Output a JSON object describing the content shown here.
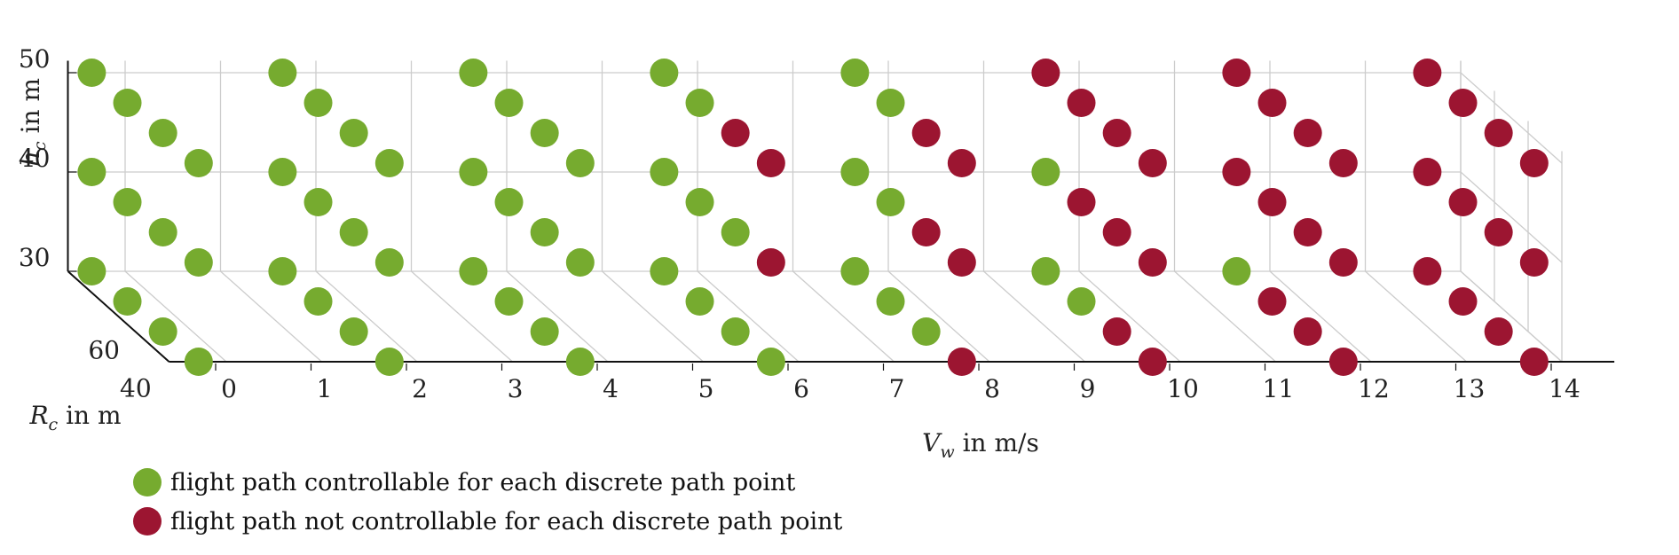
{
  "chart_data": {
    "type": "scatter",
    "x_axis": {
      "label": "V",
      "label_sub": "w",
      "label_unit": " in m/s",
      "ticks": [
        "0",
        "1",
        "2",
        "3",
        "4",
        "5",
        "6",
        "7",
        "8",
        "9",
        "10",
        "11",
        "12",
        "13",
        "14"
      ]
    },
    "y_axis": {
      "label": "R",
      "label_sub": "c",
      "label_unit": " in m",
      "ticks": [
        "40",
        "60"
      ]
    },
    "z_axis": {
      "label": "h",
      "label_sub": "c",
      "label_unit": " in m",
      "ticks": [
        "30",
        "40",
        "50"
      ]
    },
    "colors": {
      "controllable": "#76ab2f",
      "not_controllable": "#9c1531",
      "grid": "#cccccc",
      "axis": "#111111"
    },
    "legend": [
      {
        "status": "controllable",
        "label": "flight path controllable for each discrete path point"
      },
      {
        "status": "not_controllable",
        "label": "flight path not controllable for each discrete path point"
      }
    ],
    "series": [
      {
        "name": "V_w = 0",
        "status": [
          [
            "c",
            "c",
            "c",
            "c"
          ],
          [
            "c",
            "c",
            "c",
            "c"
          ],
          [
            "c",
            "c",
            "c",
            "c"
          ]
        ]
      },
      {
        "name": "V_w = 2",
        "status": [
          [
            "c",
            "c",
            "c",
            "c"
          ],
          [
            "c",
            "c",
            "c",
            "c"
          ],
          [
            "c",
            "c",
            "c",
            "c"
          ]
        ]
      },
      {
        "name": "V_w = 4",
        "status": [
          [
            "c",
            "c",
            "c",
            "c"
          ],
          [
            "c",
            "c",
            "c",
            "c"
          ],
          [
            "c",
            "c",
            "c",
            "c"
          ]
        ]
      },
      {
        "name": "V_w = 6",
        "status": [
          [
            "c",
            "c",
            "n",
            "n"
          ],
          [
            "c",
            "c",
            "c",
            "n"
          ],
          [
            "c",
            "c",
            "c",
            "c"
          ]
        ]
      },
      {
        "name": "V_w = 8",
        "status": [
          [
            "c",
            "c",
            "n",
            "n"
          ],
          [
            "c",
            "c",
            "n",
            "n"
          ],
          [
            "c",
            "c",
            "c",
            "n"
          ]
        ]
      },
      {
        "name": "V_w = 10",
        "status": [
          [
            "n",
            "n",
            "n",
            "n"
          ],
          [
            "c",
            "n",
            "n",
            "n"
          ],
          [
            "c",
            "c",
            "n",
            "n"
          ]
        ]
      },
      {
        "name": "V_w = 12",
        "status": [
          [
            "n",
            "n",
            "n",
            "n"
          ],
          [
            "n",
            "n",
            "n",
            "n"
          ],
          [
            "c",
            "n",
            "n",
            "n"
          ]
        ]
      },
      {
        "name": "V_w = 14",
        "status": [
          [
            "n",
            "n",
            "n",
            "n"
          ],
          [
            "n",
            "n",
            "n",
            "n"
          ],
          [
            "n",
            "n",
            "n",
            "n"
          ]
        ]
      }
    ],
    "grid": true
  }
}
